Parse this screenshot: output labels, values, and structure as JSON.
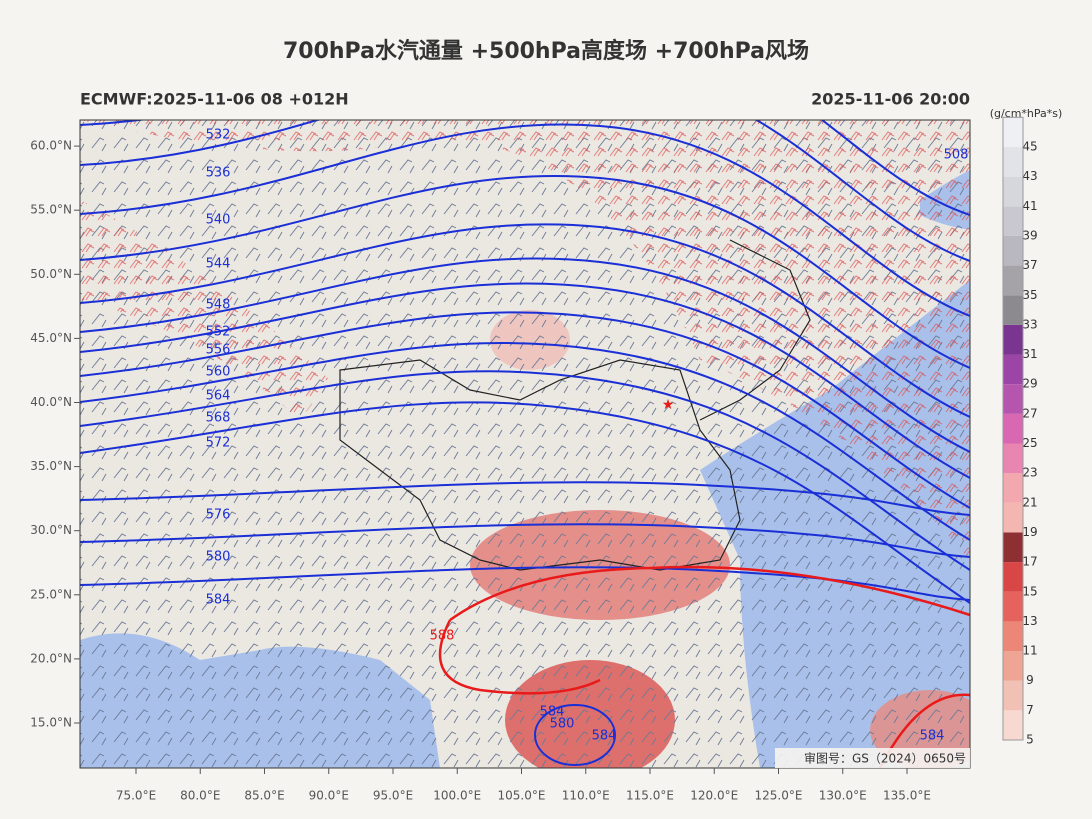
{
  "title": "700hPa水汽通量 +500hPa高度场 +700hPa风场",
  "model_run": "ECMWF:2025-11-06 08 +012H",
  "valid_time": "2025-11-06 20:00",
  "colorbar": {
    "unit": "(g/cm*hPa*s)",
    "ticks": [
      5,
      7,
      9,
      11,
      13,
      15,
      17,
      19,
      21,
      23,
      25,
      27,
      29,
      31,
      33,
      35,
      37,
      39,
      41,
      43,
      45
    ]
  },
  "lat_labels": [
    "15.0°N",
    "20.0°N",
    "25.0°N",
    "30.0°N",
    "35.0°N",
    "40.0°N",
    "45.0°N",
    "50.0°N",
    "55.0°N",
    "60.0°N"
  ],
  "lon_labels": [
    "75.0°E",
    "80.0°E",
    "85.0°E",
    "90.0°E",
    "95.0°E",
    "100.0°E",
    "105.0°E",
    "110.0°E",
    "115.0°E",
    "120.0°E",
    "125.0°E",
    "130.0°E",
    "135.0°E"
  ],
  "contour_labels": [
    "532",
    "536",
    "540",
    "544",
    "548",
    "552",
    "556",
    "560",
    "564",
    "568",
    "572",
    "576",
    "580",
    "584",
    "588",
    "508",
    "584",
    "580",
    "584",
    "584"
  ],
  "map_approval": "审图号：GS（2024）0650号"
}
